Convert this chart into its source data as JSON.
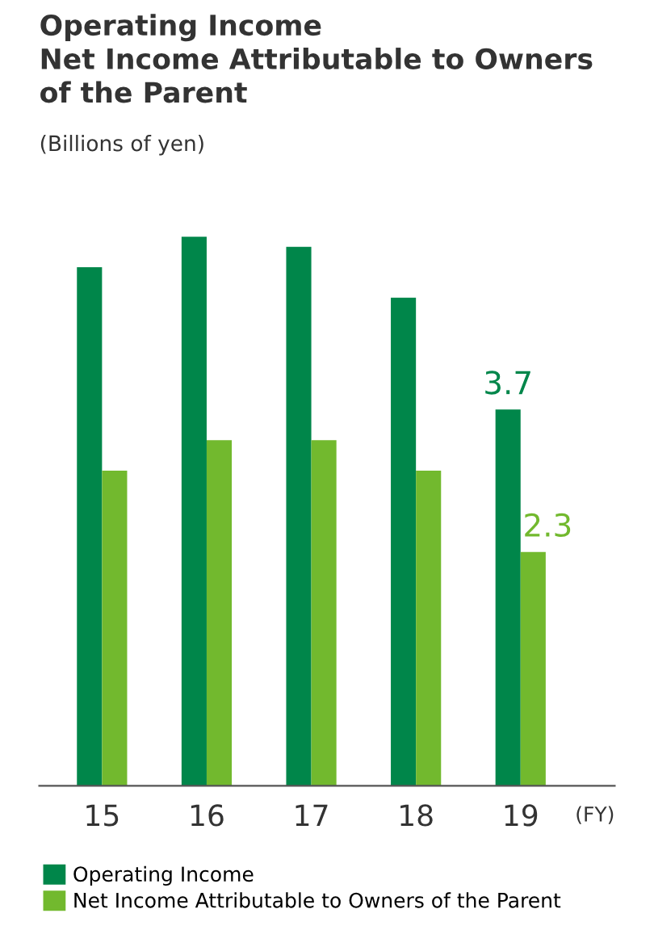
{
  "chart_data": {
    "type": "bar",
    "title": "Operating Income\nNet Income Attributable to Owners\nof the Parent",
    "subtitle": "(Billions of yen)",
    "xlabel": "(FY)",
    "categories": [
      "15",
      "16",
      "17",
      "18",
      "19"
    ],
    "legend": "bottom",
    "series": [
      {
        "name": "Operating Income",
        "color": "#00864a",
        "values": [
          5.1,
          5.4,
          5.3,
          4.8,
          3.7
        ],
        "value_labels": [
          null,
          null,
          null,
          null,
          "3.7"
        ]
      },
      {
        "name": "Net Income Attributable to Owners of the Parent",
        "color": "#72b92e",
        "values": [
          3.1,
          3.4,
          3.4,
          3.1,
          2.3
        ],
        "value_labels": [
          null,
          null,
          null,
          null,
          "2.3"
        ]
      }
    ]
  }
}
